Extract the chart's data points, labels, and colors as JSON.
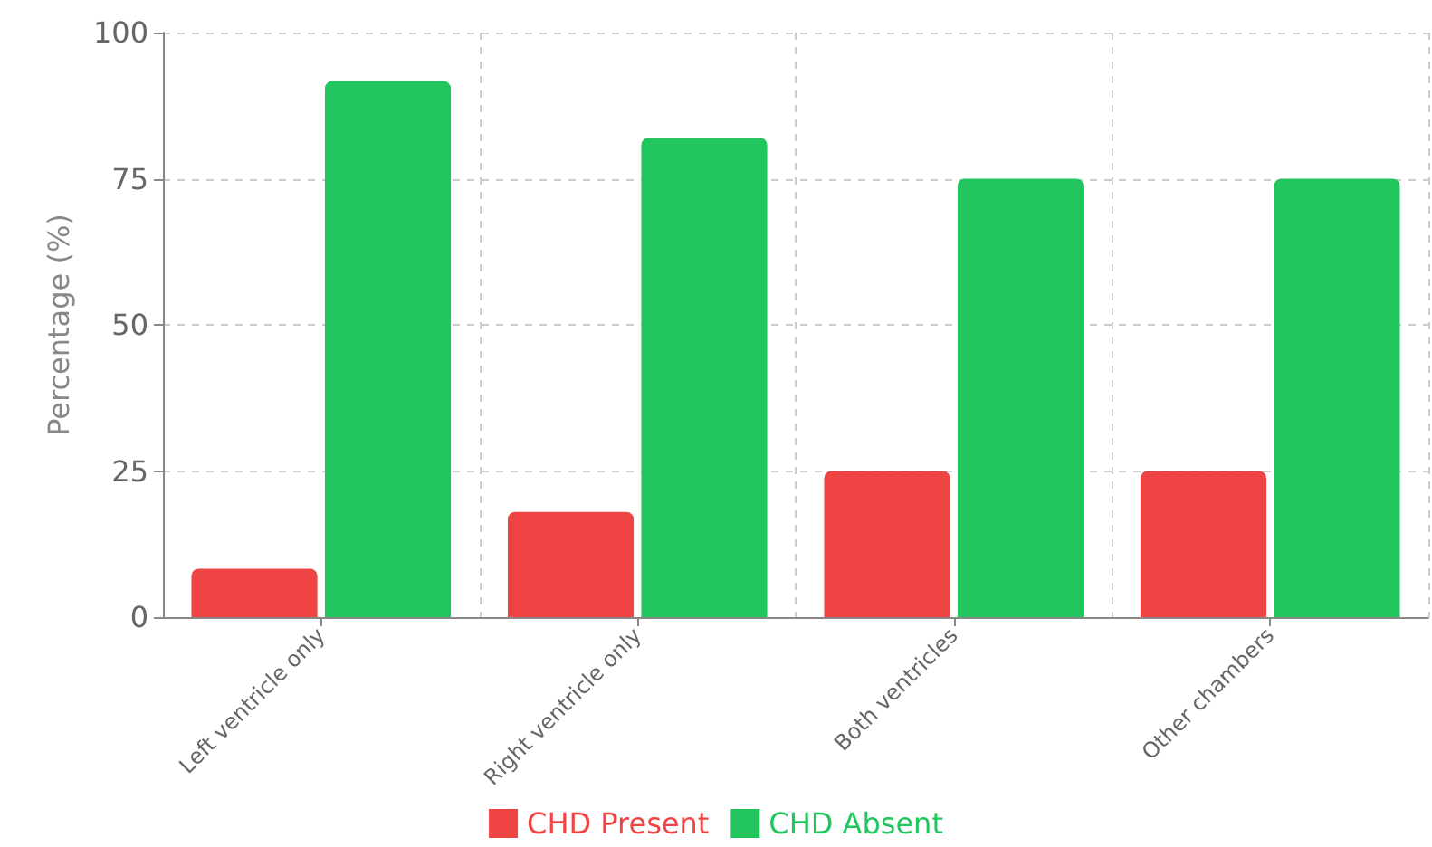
{
  "chart_data": {
    "type": "bar",
    "ylabel": "Percentage (%)",
    "categories": [
      "Left ventricle only",
      "Right ventricle only",
      "Both ventricles",
      "Other chambers"
    ],
    "series": [
      {
        "name": "CHD Present",
        "color": "#ef4444",
        "values": [
          8.3,
          18,
          25,
          25
        ]
      },
      {
        "name": "CHD Absent",
        "color": "#22c55e",
        "values": [
          91.7,
          82,
          75,
          75
        ]
      }
    ],
    "ylim": [
      0,
      100
    ],
    "yticks": [
      0,
      25,
      50,
      75,
      100
    ],
    "grid": true,
    "legend": "bottom"
  }
}
